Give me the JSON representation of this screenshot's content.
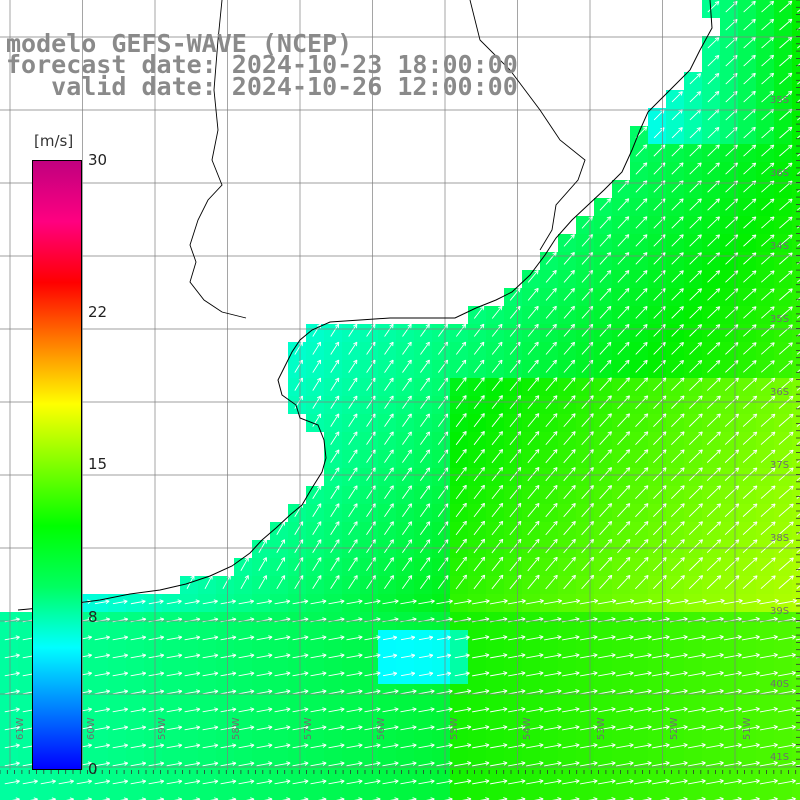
{
  "title": {
    "line1": "modelo GEFS-WAVE (NCEP)",
    "line2": "forecast date: 2024-10-23 18:00:00",
    "line3": "   valid date: 2024-10-26 12:00:00"
  },
  "colorbar": {
    "unit": "[m/s]",
    "ticks": [
      "30",
      "22",
      "15",
      "8",
      "0"
    ],
    "colors": [
      "#0000ff",
      "#0080ff",
      "#00ffff",
      "#00ff60",
      "#00ff00",
      "#80ff00",
      "#ffff00",
      "#ff8000",
      "#ff0000",
      "#ff0080",
      "#c0007f"
    ]
  },
  "lat_labels": [
    "35S",
    "36S",
    "34S",
    "35S",
    "36S",
    "37S",
    "38S",
    "39S",
    "40S",
    "41S"
  ],
  "lon_labels": [
    "61W",
    "60W",
    "59W",
    "58W",
    "57W",
    "56W",
    "55W",
    "54W",
    "53W",
    "52W",
    "51W"
  ],
  "colors": {
    "land": "#ffffff",
    "coast": "#000000",
    "grid": "#7f7f7f",
    "title": "#8a8a8a",
    "arrow": "#ffffff"
  }
}
